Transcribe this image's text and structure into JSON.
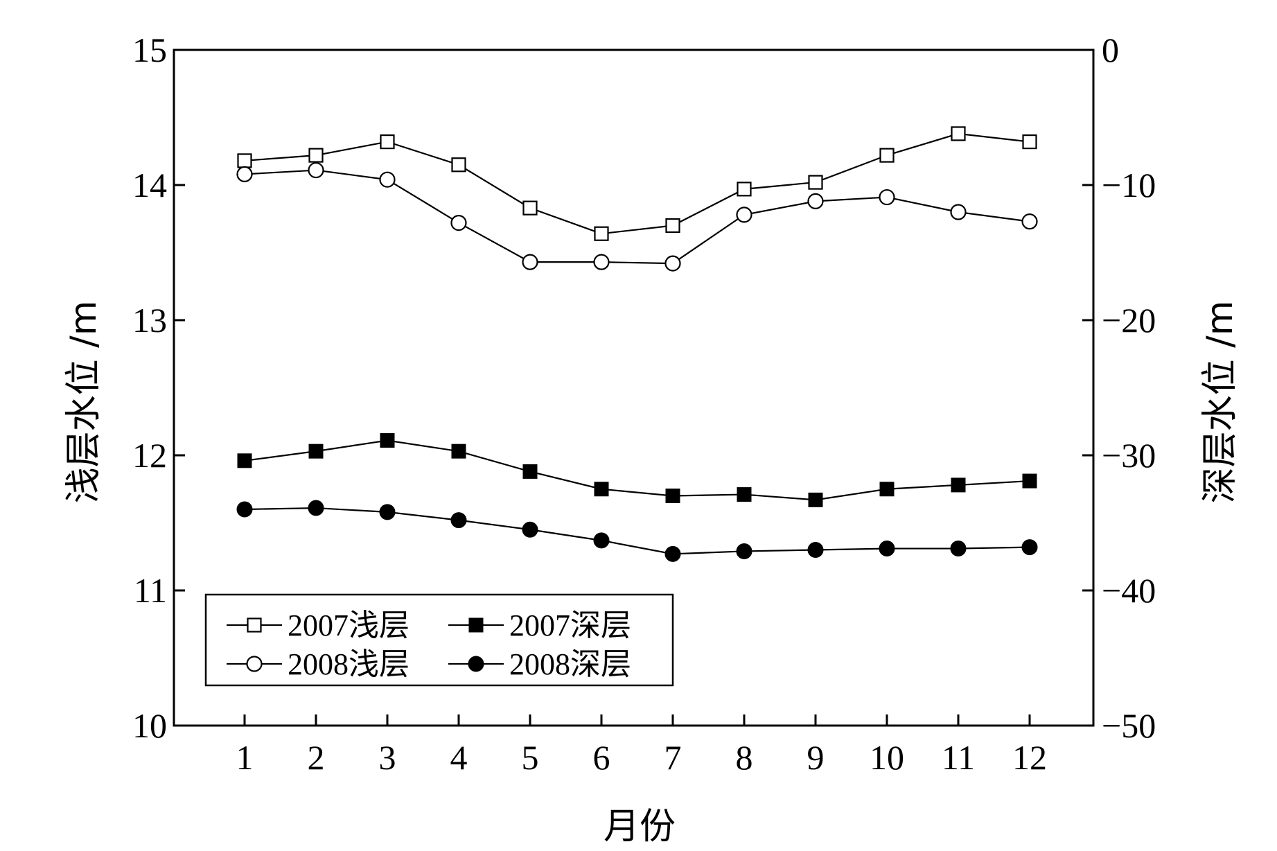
{
  "chart_data": {
    "type": "line",
    "xlabel": "月份",
    "ylabel_left": "浅层水位 /m",
    "ylabel_right": "深层水位 /m",
    "categories": [
      1,
      2,
      3,
      4,
      5,
      6,
      7,
      8,
      9,
      10,
      11,
      12
    ],
    "xtick_labels": [
      "1",
      "2",
      "3",
      "4",
      "5",
      "6",
      "7",
      "8",
      "9",
      "10",
      "11",
      "12"
    ],
    "ylim_left": [
      10,
      15
    ],
    "ylim_right": [
      -50,
      0
    ],
    "yticks_left": [
      10,
      11,
      12,
      13,
      14,
      15
    ],
    "yticks_right": [
      0,
      -10,
      -20,
      -30,
      -40,
      -50
    ],
    "ytick_labels_left": [
      "10",
      "11",
      "12",
      "13",
      "14",
      "15"
    ],
    "ytick_labels_right": [
      "0",
      "−10",
      "−20",
      "−30",
      "−40",
      "−50"
    ],
    "grid": false,
    "legend_position": "bottom-left",
    "series": [
      {
        "name": "2007浅层",
        "axis": "left",
        "marker": "square-open",
        "values": [
          14.18,
          14.22,
          14.32,
          14.15,
          13.83,
          13.64,
          13.7,
          13.97,
          14.02,
          14.22,
          14.38,
          14.32
        ]
      },
      {
        "name": "2007深层",
        "axis": "right",
        "marker": "square-filled",
        "values": [
          -30.4,
          -29.7,
          -28.9,
          -29.7,
          -31.2,
          -32.5,
          -33.0,
          -32.9,
          -33.3,
          -32.5,
          -32.2,
          -31.9
        ]
      },
      {
        "name": "2008浅层",
        "axis": "left",
        "marker": "circle-open",
        "values": [
          14.08,
          14.11,
          14.04,
          13.72,
          13.43,
          13.43,
          13.42,
          13.78,
          13.88,
          13.91,
          13.8,
          13.73
        ]
      },
      {
        "name": "2008深层",
        "axis": "right",
        "marker": "circle-filled",
        "values": [
          -34.0,
          -33.9,
          -34.2,
          -34.8,
          -35.5,
          -36.3,
          -37.3,
          -37.1,
          -37.0,
          -36.9,
          -36.9,
          -36.8
        ]
      }
    ]
  }
}
